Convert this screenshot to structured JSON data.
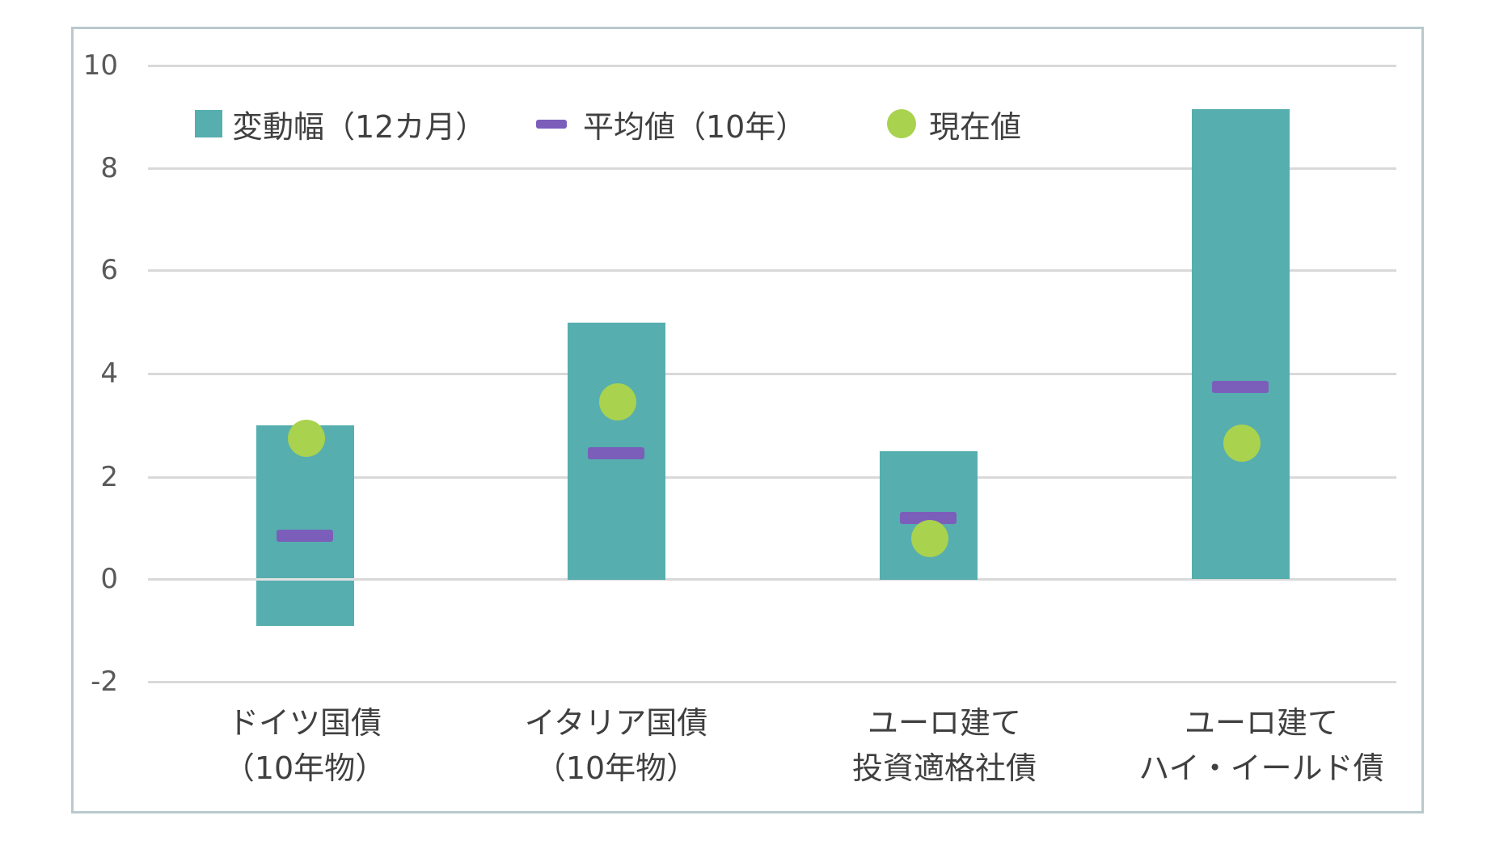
{
  "chart_data": {
    "type": "bar",
    "title": "",
    "xlabel": "",
    "ylabel": "",
    "ylim": [
      -2,
      10
    ],
    "yticks": [
      10,
      8,
      6,
      4,
      2,
      0,
      -2
    ],
    "grid": true,
    "legend_position": "top-inside",
    "categories": [
      [
        "ドイツ国債",
        "（10年物）"
      ],
      [
        "イタリア国債",
        "（10年物）"
      ],
      [
        "ユーロ建て",
        "投資適格社債"
      ],
      [
        "ユーロ建て",
        "ハイ・イールド債"
      ]
    ],
    "series": [
      {
        "name": "変動幅（12カ月）",
        "kind": "floating-bar",
        "color": "#56AEAF",
        "low": [
          -0.9,
          0.0,
          0.0,
          0.0
        ],
        "high": [
          3.0,
          5.0,
          2.5,
          9.15
        ]
      },
      {
        "name": "平均値（10年）",
        "kind": "marker-dash",
        "color": "#7B5EBA",
        "values": [
          0.85,
          2.45,
          1.2,
          3.75
        ]
      },
      {
        "name": "現在値",
        "kind": "marker-dot",
        "color": "#A9D24E",
        "values": [
          2.75,
          3.45,
          0.8,
          2.65
        ]
      }
    ]
  },
  "legend": {
    "range": "変動幅（12カ月）",
    "avg": "平均値（10年）",
    "current": "現在値"
  },
  "axis": {
    "ticks": [
      "10",
      "8",
      "6",
      "4",
      "2",
      "0",
      "-2"
    ]
  },
  "labels": [
    {
      "l1": "ドイツ国債",
      "l2": "（10年物）"
    },
    {
      "l1": "イタリア国債",
      "l2": "（10年物）"
    },
    {
      "l1": "ユーロ建て",
      "l2": "投資適格社債"
    },
    {
      "l1": "ユーロ建て",
      "l2": "ハイ・イールド債"
    }
  ]
}
